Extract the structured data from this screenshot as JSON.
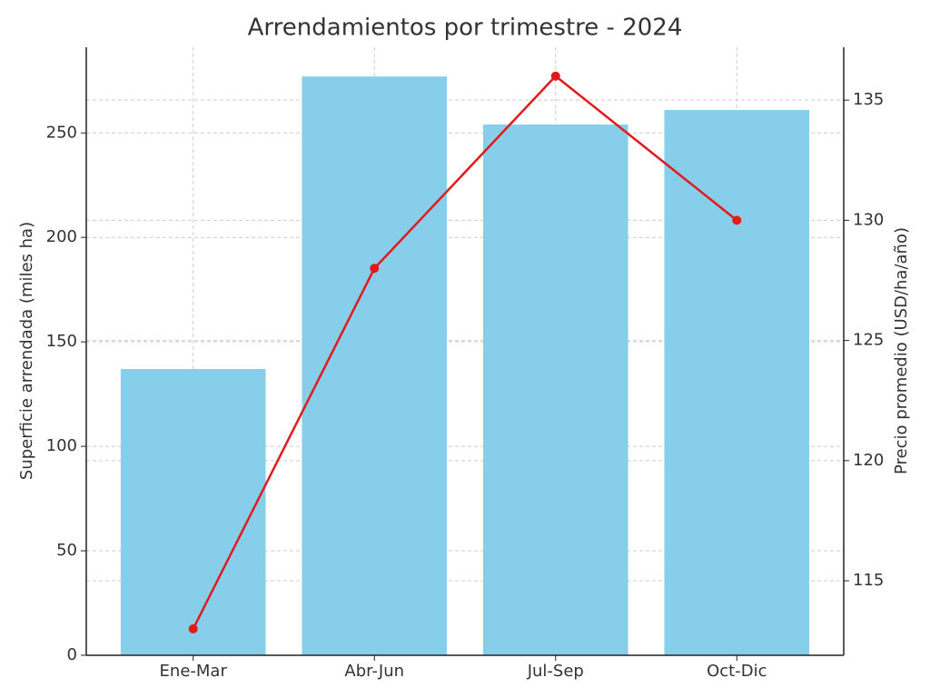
{
  "chart_data": {
    "type": "bar",
    "title": "Arrendamientos por trimestre - 2024",
    "categories": [
      "Ene-Mar",
      "Abr-Jun",
      "Jul-Sep",
      "Oct-Dic"
    ],
    "series": [
      {
        "type": "bar",
        "color": "#87ceeb",
        "values": [
          137,
          277,
          254,
          261
        ]
      },
      {
        "type": "line",
        "axis": "y2",
        "color": "#e31a1c",
        "values": [
          113,
          128,
          136,
          130
        ]
      }
    ],
    "y_label": "Superficie arrendada (miles ha)",
    "y2_label": "Precio promedio (USD/ha/año)",
    "ylim": [
      0,
      291
    ],
    "yticks": [
      0,
      50,
      100,
      150,
      200,
      250
    ],
    "y2lim": [
      111.9,
      137.2
    ],
    "y2ticks": [
      115,
      120,
      125,
      130,
      135
    ],
    "grid": true
  }
}
